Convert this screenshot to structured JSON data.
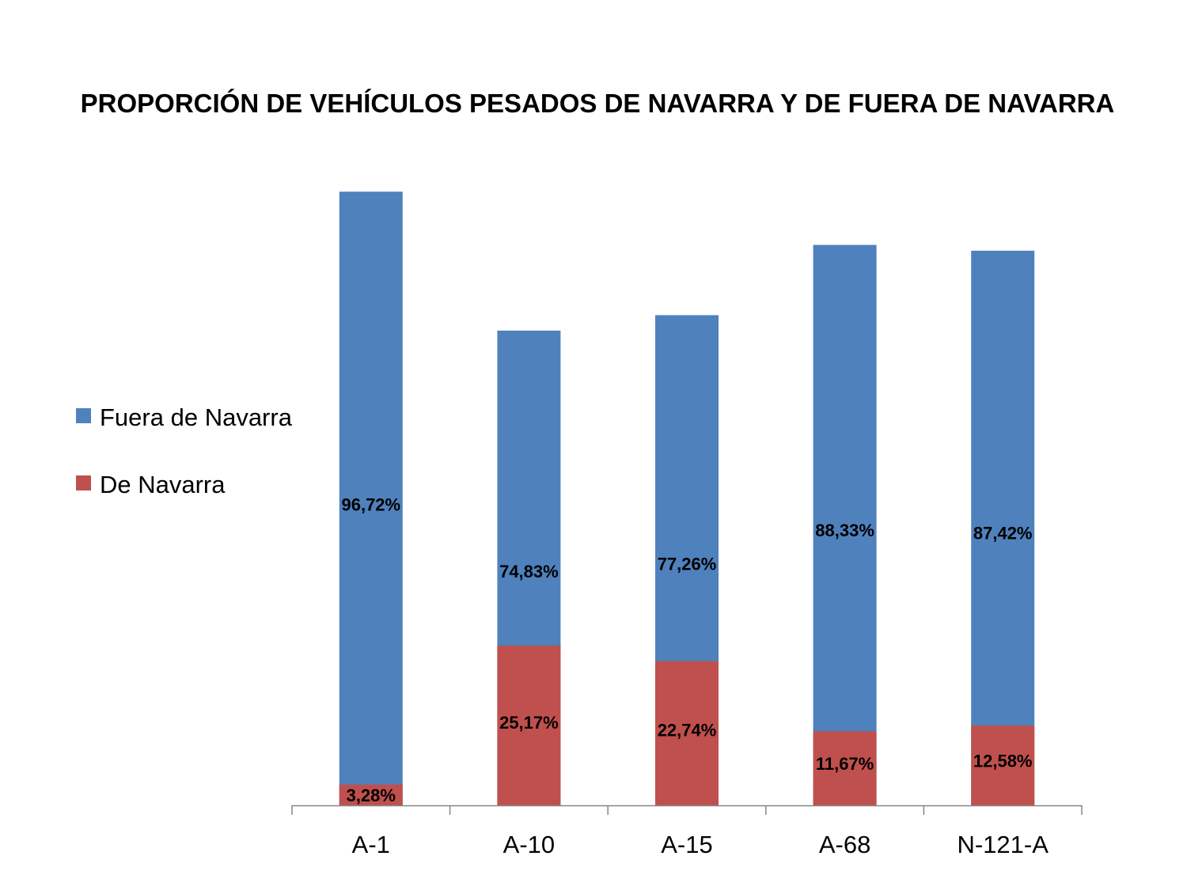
{
  "chart_data": {
    "type": "bar",
    "stacked": true,
    "percent_stacked": true,
    "title": "PROPORCIÓN DE VEHÍCULOS PESADOS DE NAVARRA Y DE FUERA DE NAVARRA",
    "categories": [
      "A-1",
      "A-10",
      "A-15",
      "A-68",
      "N-121-A"
    ],
    "series": [
      {
        "name": "Fuera de Navarra",
        "color": "#4F81BD",
        "values": [
          96.72,
          74.83,
          77.26,
          88.33,
          87.42
        ],
        "labels": [
          "96,72%",
          "74,83%",
          "77,26%",
          "88,33%",
          "87,42%"
        ]
      },
      {
        "name": "De Navarra",
        "color": "#C0504D",
        "values": [
          3.28,
          25.17,
          22.74,
          11.67,
          12.58
        ],
        "labels": [
          "3,28%",
          "25,17%",
          "22,74%",
          "11,67%",
          "12,58%"
        ]
      }
    ],
    "ylim": [
      0,
      100
    ],
    "legend_position": "left",
    "grid": false,
    "xlabel": "",
    "ylabel": ""
  }
}
